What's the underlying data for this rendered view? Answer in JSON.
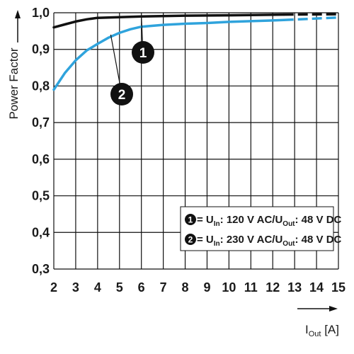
{
  "chart_data": {
    "type": "line",
    "xlabel": "I",
    "xlabel_sub": "Out",
    "xlabel_unit": " [A]",
    "ylabel": "Power Factor",
    "x_ticks": [
      "2",
      "3",
      "4",
      "5",
      "6",
      "7",
      "8",
      "9",
      "10",
      "11",
      "12",
      "13",
      "14",
      "15"
    ],
    "y_ticks": [
      "0,3",
      "0,4",
      "0,5",
      "0,6",
      "0,7",
      "0,8",
      "0,9",
      "1,0"
    ],
    "xlim": [
      2,
      15
    ],
    "ylim": [
      0.3,
      1.0
    ],
    "grid": true,
    "legend_position": "bottom-right",
    "series": [
      {
        "id": "1",
        "color": "#111111",
        "x": [
          2,
          2.5,
          3,
          3.5,
          4,
          5,
          6,
          8,
          10,
          12.5
        ],
        "y": [
          0.96,
          0.968,
          0.976,
          0.982,
          0.986,
          0.988,
          0.99,
          0.992,
          0.993,
          0.995
        ],
        "dashed_x": [
          12.5,
          15
        ],
        "dashed_y": [
          0.995,
          0.996
        ]
      },
      {
        "id": "2",
        "color": "#2fa3dc",
        "x": [
          2,
          2.5,
          3,
          3.5,
          4,
          4.5,
          5,
          5.5,
          6,
          7,
          8,
          9,
          10,
          11,
          12,
          12.5
        ],
        "y": [
          0.79,
          0.835,
          0.87,
          0.897,
          0.915,
          0.932,
          0.945,
          0.955,
          0.962,
          0.967,
          0.97,
          0.972,
          0.975,
          0.977,
          0.979,
          0.98
        ],
        "dashed_x": [
          12.5,
          15
        ],
        "dashed_y": [
          0.98,
          0.987
        ]
      }
    ],
    "callouts": [
      {
        "label": "1",
        "target_x": 6.0,
        "target_y": 0.99
      },
      {
        "label": "2",
        "target_x": 4.6,
        "target_y": 0.94
      }
    ],
    "legend": [
      {
        "badge": "1",
        "prefix": " = U",
        "in_sub": "In",
        "middle": ": 120 V AC/U",
        "out_sub": "Out",
        "suffix": ": 48 V DC"
      },
      {
        "badge": "2",
        "prefix": " = U",
        "in_sub": "In",
        "middle": ": 230 V AC/U",
        "out_sub": "Out",
        "suffix": ": 48 V DC"
      }
    ]
  }
}
